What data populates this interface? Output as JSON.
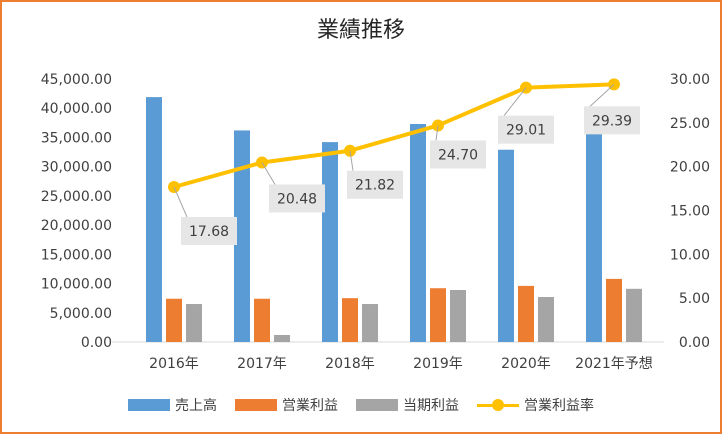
{
  "chart_data": {
    "type": "bar",
    "title": "業績推移",
    "categories": [
      "2016年",
      "2017年",
      "2018年",
      "2019年",
      "2020年",
      "2021年予想"
    ],
    "series": [
      {
        "name": "売上高",
        "axis": "left",
        "color": "#5B9BD5",
        "values": [
          41900,
          36200,
          34200,
          37300,
          32900,
          36700
        ]
      },
      {
        "name": "営業利益",
        "axis": "left",
        "color": "#ED7D31",
        "values": [
          7400,
          7400,
          7500,
          9200,
          9600,
          10800
        ]
      },
      {
        "name": "当期利益",
        "axis": "left",
        "color": "#A5A5A5",
        "values": [
          6500,
          1200,
          6500,
          8900,
          7700,
          9100
        ]
      },
      {
        "name": "営業利益率",
        "axis": "right",
        "type": "line",
        "color": "#FFC000",
        "values": [
          17.68,
          20.48,
          21.82,
          24.7,
          29.01,
          29.39
        ]
      }
    ],
    "data_labels": [
      "17.68",
      "20.48",
      "21.82",
      "24.70",
      "29.01",
      "29.39"
    ],
    "y_left": {
      "lim": [
        0,
        45000
      ],
      "ticks": [
        "0.00",
        "5,000.00",
        "10,000.00",
        "15,000.00",
        "20,000.00",
        "25,000.00",
        "30,000.00",
        "35,000.00",
        "40,000.00",
        "45,000.00"
      ]
    },
    "y_right": {
      "lim": [
        0,
        30
      ],
      "ticks": [
        "0.00",
        "5.00",
        "10.00",
        "15.00",
        "20.00",
        "25.00",
        "30.00"
      ]
    },
    "grid": false,
    "legend_position": "bottom",
    "border_color": "#ED7D31"
  }
}
